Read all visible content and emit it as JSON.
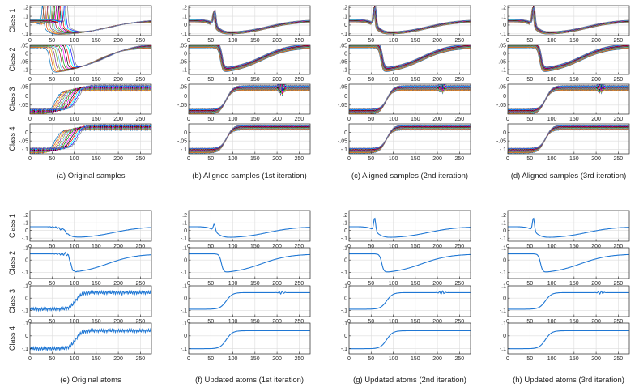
{
  "figure": {
    "row_labels": [
      "Class 1",
      "Class 2",
      "Class 3",
      "Class 4"
    ],
    "colors": {
      "atom_line": "#1f77d4",
      "axis": "#262626",
      "grid": "#dcdcdc",
      "tick_text": "#262626",
      "sample_palette": [
        "#0072bd",
        "#d95319",
        "#edb120",
        "#7e2f8e",
        "#77ac30",
        "#4dbeee",
        "#a2142f",
        "#00a000",
        "#ff00ff",
        "#000000",
        "#ff0000",
        "#00ffff",
        "#1010ff",
        "#888888"
      ]
    }
  },
  "chart_data": [
    {
      "id": "samples",
      "type": "line",
      "caption_prefixes": [
        "(a)",
        "(b)",
        "(c)",
        "(d)"
      ],
      "captions": [
        "Original samples",
        "Aligned samples (1st iteration)",
        "Aligned samples (2nd iteration)",
        "Aligned samples (3rd iteration)"
      ],
      "series_per_panel": 14,
      "x": {
        "range": [
          0,
          275
        ],
        "ticks": [
          0,
          50,
          100,
          150,
          200,
          250
        ]
      },
      "rows": [
        {
          "label": "Class 1",
          "ylim": [
            -0.12,
            0.22
          ],
          "yticks": [
            -0.1,
            0,
            0.1,
            0.2
          ],
          "shape": {
            "start": 0.05,
            "dip": -0.1,
            "end": 0.05,
            "peak": 0.22,
            "onset": 60,
            "dip_width": 8,
            "recover_mid": 180,
            "recover_width": 32
          }
        },
        {
          "label": "Class 2",
          "ylim": [
            -0.13,
            0.055
          ],
          "yticks": [
            -0.1,
            -0.05,
            0,
            0.05
          ],
          "shape": {
            "start": 0.05,
            "dip": -0.11,
            "end": 0.05,
            "onset": 72,
            "dip_width": 2.5,
            "recover_mid": 165,
            "recover_width": 32
          }
        },
        {
          "label": "Class 3",
          "ylim": [
            -0.1,
            0.065
          ],
          "yticks": [
            -0.05,
            0,
            0.05
          ],
          "shape": {
            "start": -0.085,
            "end": 0.045,
            "mid": 85,
            "width": 7,
            "wiggle_at": 210,
            "wiggle_amp": 0.02
          }
        },
        {
          "label": "Class 4",
          "ylim": [
            -0.125,
            0.05
          ],
          "yticks": [
            -0.1,
            -0.05,
            0
          ],
          "shape": {
            "start": -0.105,
            "end": 0.03,
            "mid": 85,
            "width": 7
          }
        }
      ]
    },
    {
      "id": "atoms",
      "type": "line",
      "caption_prefixes": [
        "(e)",
        "(f)",
        "(g)",
        "(h)"
      ],
      "captions": [
        "Original atoms",
        "Updated atoms (1st iteration)",
        "Updated atoms (2nd iteration)",
        "Updated atoms (3rd iteration)"
      ],
      "x": {
        "range": [
          0,
          275
        ],
        "ticks": [
          0,
          50,
          100,
          150,
          200,
          250
        ]
      },
      "rows": [
        {
          "label": "Class 1",
          "ylim": [
            -0.14,
            0.26
          ],
          "yticks": [
            -0.1,
            0,
            0.1,
            0.2
          ],
          "shape": {
            "start": 0.05,
            "dip": -0.1,
            "end": 0.05,
            "peak": 0.22,
            "onset": 60,
            "dip_width": 8,
            "recover_mid": 180,
            "recover_width": 32
          }
        },
        {
          "label": "Class 2",
          "ylim": [
            -0.15,
            0.1
          ],
          "yticks": [
            -0.1,
            0,
            0.1
          ],
          "shape": {
            "start": 0.05,
            "dip": -0.11,
            "end": 0.05,
            "onset": 72,
            "dip_width": 2.5,
            "recover_mid": 165,
            "recover_width": 32
          }
        },
        {
          "label": "Class 3",
          "ylim": [
            -0.15,
            0.1
          ],
          "yticks": [
            -0.1,
            0,
            0.1
          ],
          "shape": {
            "start": -0.09,
            "end": 0.045,
            "mid": 85,
            "width": 7,
            "wiggle_at": 210,
            "wiggle_amp": 0.02
          }
        },
        {
          "label": "Class 4",
          "ylim": [
            -0.14,
            0.1
          ],
          "yticks": [
            -0.1,
            0,
            0.1
          ],
          "shape": {
            "start": -0.1,
            "end": 0.04,
            "mid": 85,
            "width": 7
          }
        }
      ]
    }
  ]
}
